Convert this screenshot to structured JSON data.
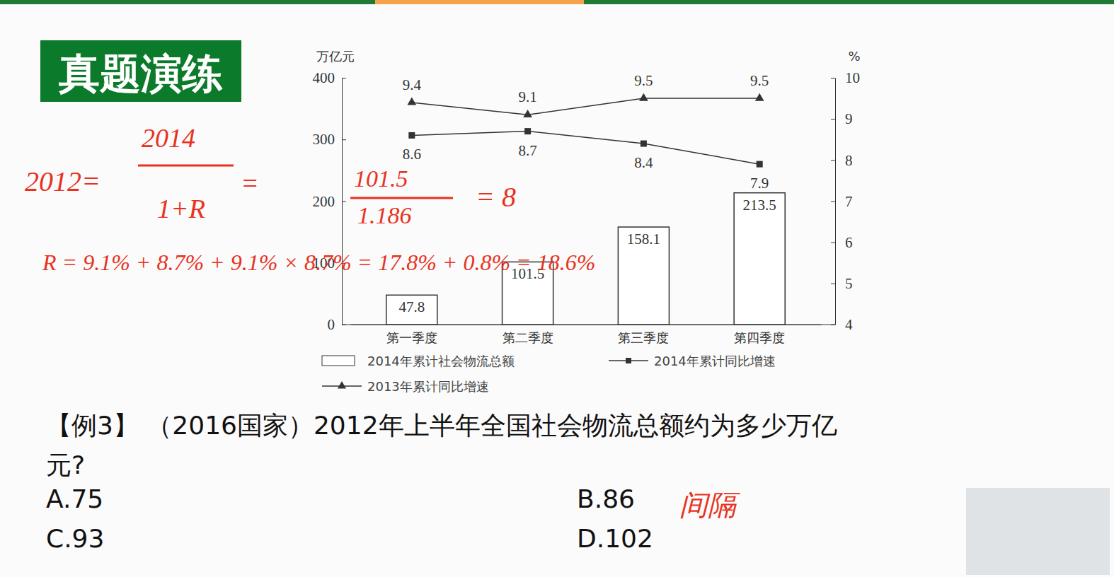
{
  "header": {
    "title": "真题演练"
  },
  "chart_data": {
    "type": "bar",
    "categories": [
      "第一季度",
      "第二季度",
      "第三季度",
      "第四季度"
    ],
    "series": [
      {
        "name": "2014年累计社会物流总额",
        "type": "bar",
        "color": "#ffffff",
        "values": [
          47.8,
          101.5,
          158.1,
          213.5
        ]
      },
      {
        "name": "2014年累计同比增速",
        "type": "line",
        "axis": "y2",
        "color": "#333333",
        "marker": "square",
        "values": [
          8.6,
          8.7,
          8.4,
          7.9
        ]
      },
      {
        "name": "2013年累计同比增速",
        "type": "line",
        "axis": "y2",
        "color": "#333333",
        "marker": "triangle",
        "values": [
          9.4,
          9.1,
          9.5,
          9.5
        ]
      }
    ],
    "y_label": "万亿元",
    "y2_label": "%",
    "ylim": [
      0,
      400
    ],
    "yticks": [
      0,
      100,
      200,
      300,
      400
    ],
    "y2lim": [
      4,
      10
    ],
    "y2ticks": [
      4,
      5,
      6,
      7,
      8,
      9,
      10
    ],
    "data_labels": true,
    "legend": "bottom"
  },
  "question": {
    "lines": [
      "【例3】 （2016国家）2012年上半年全国社会物流总额约为多少万亿",
      "元?"
    ],
    "options": [
      "A.75",
      "B.86",
      "C.93",
      "D.102"
    ]
  },
  "annotations": [
    "2012=",
    "2014",
    "1+R",
    "=",
    "101.5",
    "1.186",
    "= 8",
    "R = 9.1% + 8.7% + 9.1% × 8.7% = 17.8% + 0.8% = 18.6%",
    "间隔"
  ]
}
